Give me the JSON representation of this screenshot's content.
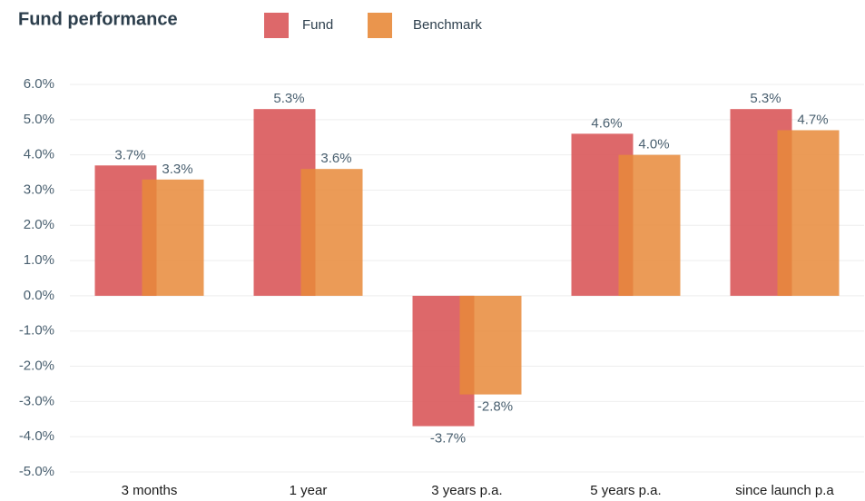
{
  "chart_data": {
    "type": "bar",
    "title": "Fund performance",
    "categories": [
      "3 months",
      "1 year",
      "3 years p.a.",
      "5 years p.a.",
      "since launch p.a"
    ],
    "series": [
      {
        "name": "Fund",
        "color": "#d9585a",
        "values": [
          3.7,
          5.3,
          -3.7,
          4.6,
          5.3
        ],
        "value_labels": [
          "3.7%",
          "5.3%",
          "-3.7%",
          "4.6%",
          "5.3%"
        ]
      },
      {
        "name": "Benchmark",
        "color": "#e8893a",
        "values": [
          3.3,
          3.6,
          -2.8,
          4.0,
          4.7
        ],
        "value_labels": [
          "3.3%",
          "3.6%",
          "-2.8%",
          "4.0%",
          "4.7%"
        ]
      }
    ],
    "ylim": [
      -5,
      6
    ],
    "yticks": [
      {
        "value": 6,
        "label": "6.0%"
      },
      {
        "value": 5,
        "label": "5.0%"
      },
      {
        "value": 4,
        "label": "4.0%"
      },
      {
        "value": 3,
        "label": "3.0%"
      },
      {
        "value": 2,
        "label": "2.0%"
      },
      {
        "value": 1,
        "label": "1.0%"
      },
      {
        "value": 0,
        "label": "0.0%"
      },
      {
        "value": -1,
        "label": "-1.0%"
      },
      {
        "value": -2,
        "label": "-2.0%"
      },
      {
        "value": -3,
        "label": "-3.0%"
      },
      {
        "value": -4,
        "label": "-4.0%"
      },
      {
        "value": -5,
        "label": "-5.0%"
      }
    ],
    "grid": true,
    "legend": "top"
  }
}
